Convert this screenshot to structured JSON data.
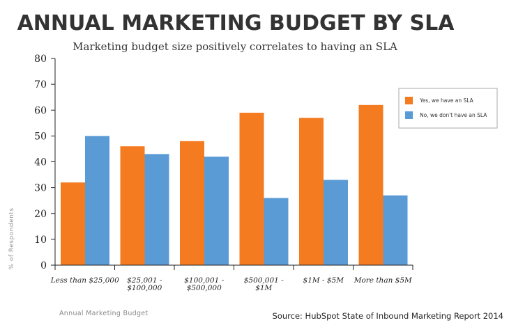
{
  "chart_data": {
    "type": "bar",
    "title": "ANNUAL MARKETING BUDGET BY SLA",
    "subtitle": "Marketing budget size positively correlates to having an SLA",
    "xlabel": "Annual Marketing Budget",
    "ylabel": "% of Respondents",
    "source": "Source: HubSpot State of Inbound Marketing Report 2014",
    "categories": [
      [
        "Less than $25,000"
      ],
      [
        "$25,001 -",
        "$100,000"
      ],
      [
        "$100,001 -",
        "$500,000"
      ],
      [
        "$500,001 -",
        "$1M"
      ],
      [
        "$1M - $5M"
      ],
      [
        "More than $5M"
      ]
    ],
    "series": [
      {
        "name": "Yes, we have an SLA",
        "color": "#F47B20",
        "values": [
          32,
          46,
          48,
          59,
          57,
          62
        ]
      },
      {
        "name": "No, we don't have an SLA",
        "color": "#5B9BD5",
        "values": [
          50,
          43,
          42,
          26,
          33,
          27
        ]
      }
    ],
    "ylim": [
      0,
      80
    ],
    "yticks": [
      0,
      10,
      20,
      30,
      40,
      50,
      60,
      70,
      80
    ],
    "grid": false,
    "legend": "top-right"
  }
}
